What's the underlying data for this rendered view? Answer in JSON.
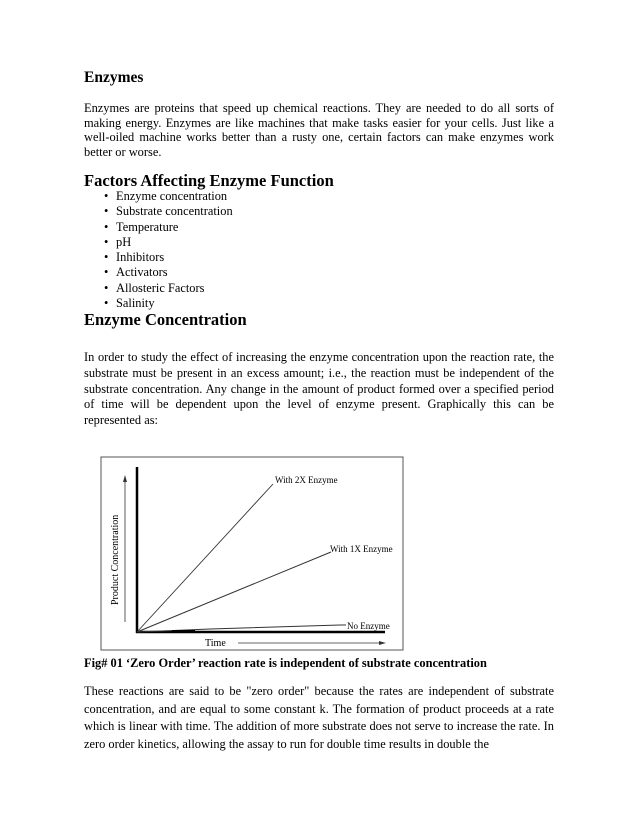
{
  "heading1": "Enzymes",
  "para1": "Enzymes are proteins that speed up chemical reactions. They are needed to do all sorts of making energy. Enzymes are like machines that make tasks easier for your cells. Just like a well-oiled machine works better than a rusty one, certain factors can make enzymes work better or worse.",
  "heading2": "Factors Affecting Enzyme Function",
  "factors": [
    "Enzyme concentration",
    "Substrate concentration",
    "Temperature",
    "pH",
    "Inhibitors",
    "Activators",
    "Allosteric Factors",
    "Salinity"
  ],
  "heading3": "Enzyme Concentration",
  "para2": "In order to study the effect of increasing the enzyme concentration upon the reaction rate, the substrate must be present in an excess amount; i.e., the reaction must be independent of the substrate concentration. Any change in the amount of product formed over a specified period of time will be dependent upon the level of enzyme present. Graphically this can be represented as:",
  "figure": {
    "ylabel": "Product Concentration",
    "xlabel": "Time",
    "line_2x": "With 2X Enzyme",
    "line_1x": "With 1X Enzyme",
    "line_none": "No Enzyme"
  },
  "caption": "Fig# 01 ‘Zero Order’ reaction rate is independent of substrate concentration",
  "para3": "These reactions are said to be \"zero order\" because the rates are independent of substrate concentration, and are equal to some constant k. The formation of product proceeds at a rate which is linear with time. The addition of more substrate does not serve to increase the rate. In zero order kinetics, allowing the assay to run for double time results in double the"
}
